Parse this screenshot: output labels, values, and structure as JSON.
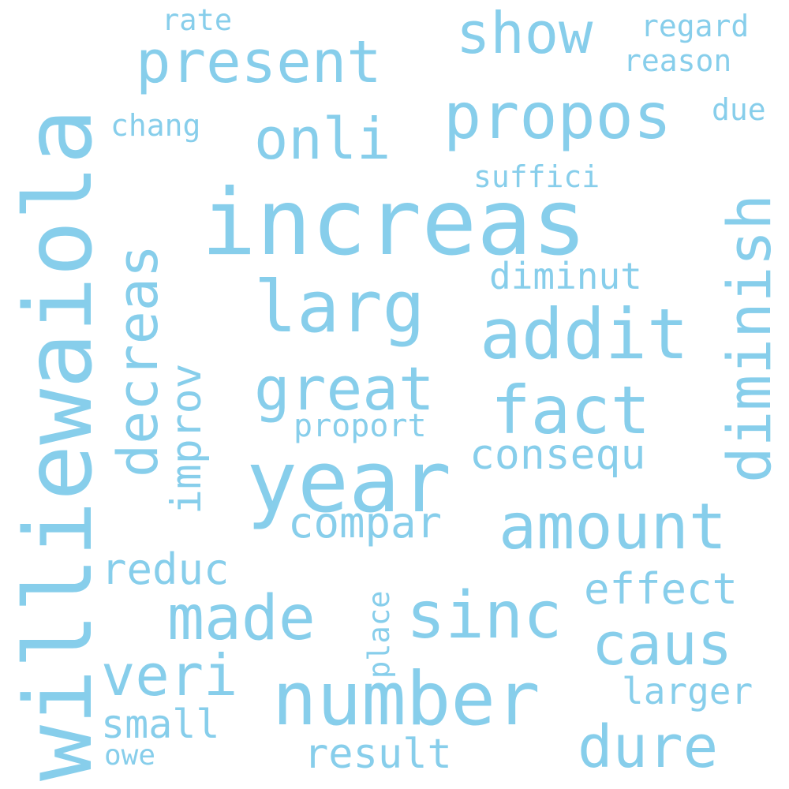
{
  "wordcloud": {
    "color": "#87ceeb",
    "words": {
      "williewaiola": "williewaiola",
      "increas": "increas",
      "year": "year",
      "number": "number",
      "present": "present",
      "propos": "propos",
      "addit": "addit",
      "amount": "amount",
      "larg": "larg",
      "great": "great",
      "fact": "fact",
      "sinc": "sinc",
      "made": "made",
      "diminish": "diminish",
      "decreas": "decreas",
      "show": "show",
      "onli": "onli",
      "caus": "caus",
      "dure": "dure",
      "veri": "veri",
      "consequ": "consequ",
      "compar": "compar",
      "effect": "effect",
      "reduc": "reduc",
      "improv": "improv",
      "small": "small",
      "result": "result",
      "larger": "larger",
      "diminut": "diminut",
      "proport": "proport",
      "suffici": "suffici",
      "chang": "chang",
      "regard": "regard",
      "reason": "reason",
      "rate": "rate",
      "due": "due",
      "place": "place",
      "owe": "owe"
    }
  }
}
